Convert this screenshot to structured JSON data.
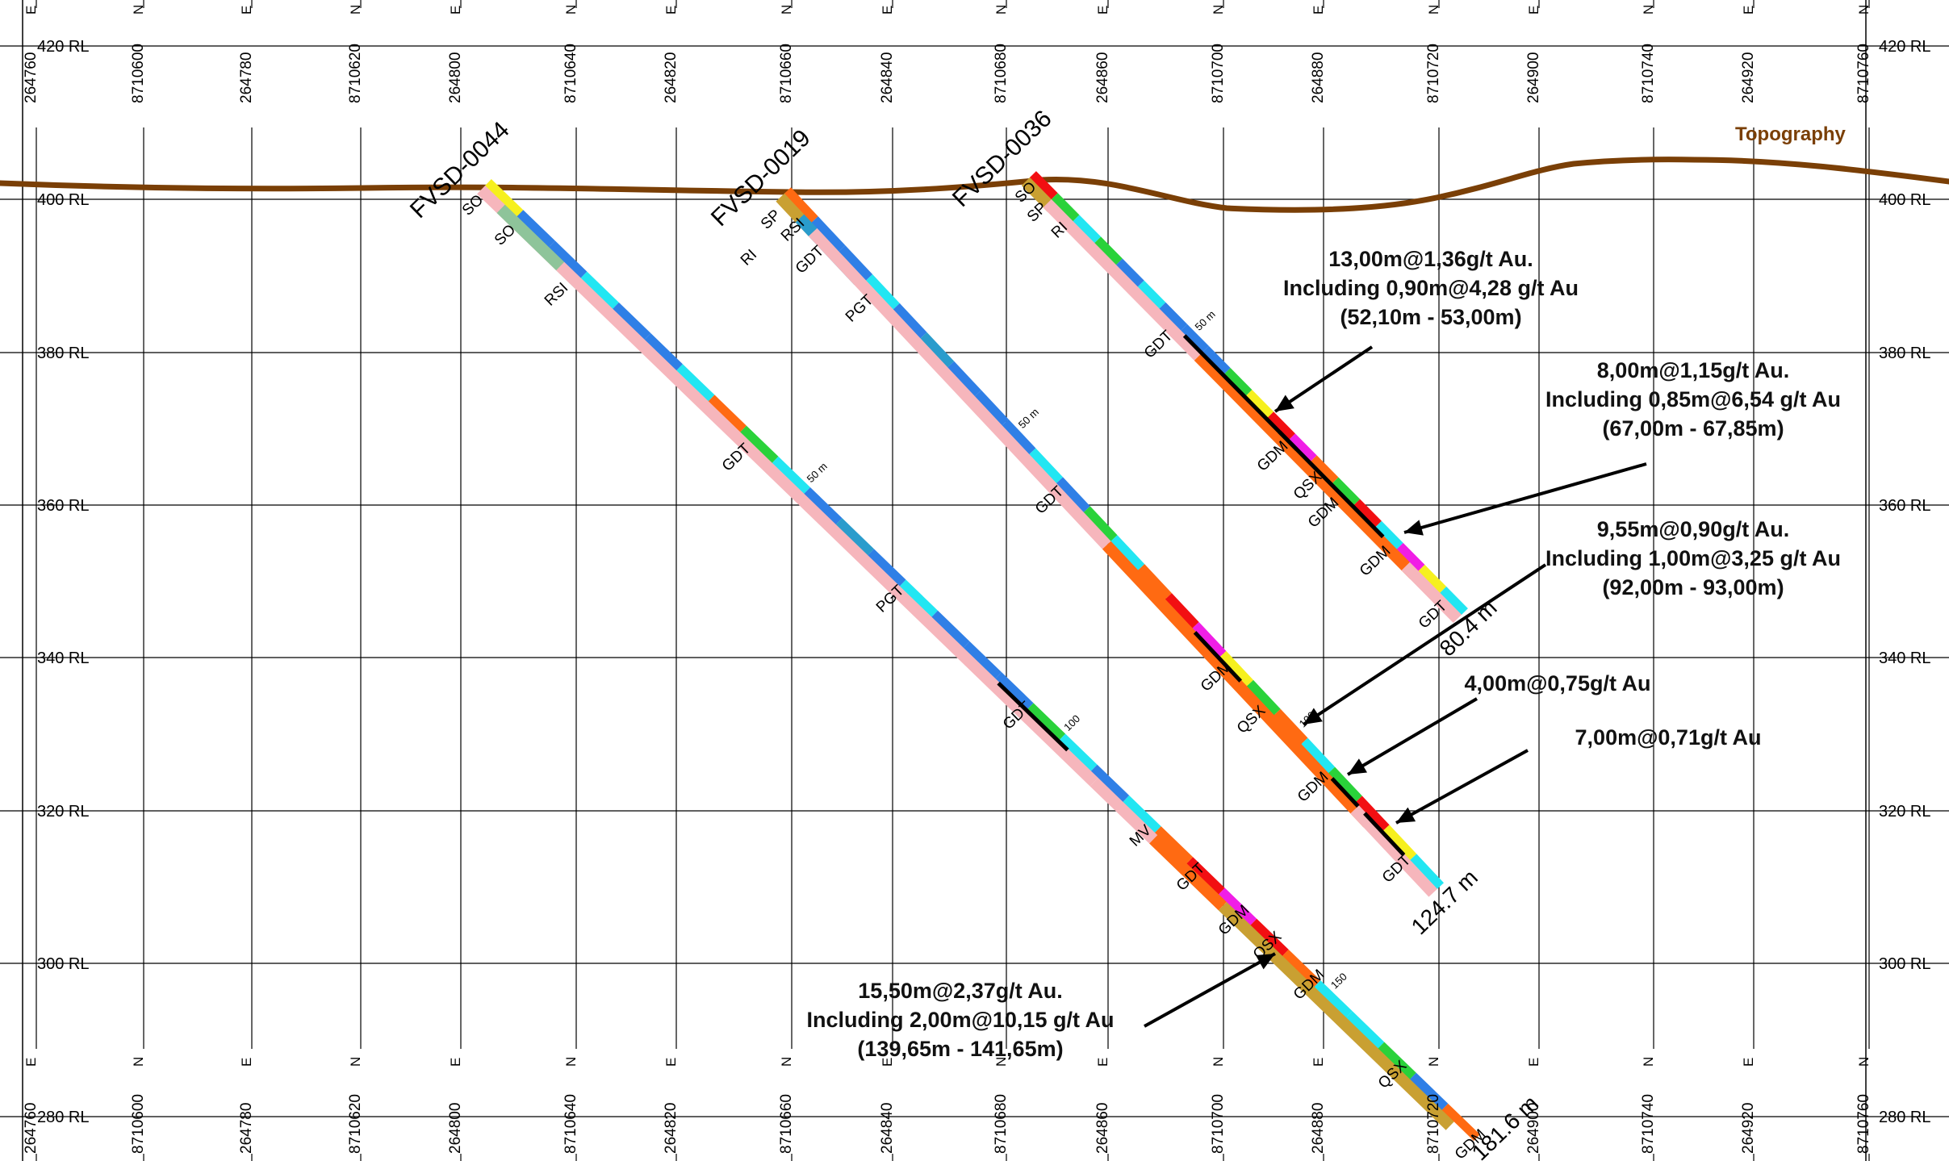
{
  "section": {
    "rl_labels": [
      "420 RL",
      "400 RL",
      "380 RL",
      "360 RL",
      "340 RL",
      "320 RL",
      "300 RL",
      "280 RL"
    ],
    "coord_labels": [
      {
        "num": "264760",
        "dir": "E"
      },
      {
        "num": "8710600",
        "dir": "N"
      },
      {
        "num": "264780",
        "dir": "E"
      },
      {
        "num": "8710620",
        "dir": "N"
      },
      {
        "num": "264800",
        "dir": "E"
      },
      {
        "num": "8710640",
        "dir": "N"
      },
      {
        "num": "264820",
        "dir": "E"
      },
      {
        "num": "8710660",
        "dir": "N"
      },
      {
        "num": "264840",
        "dir": "E"
      },
      {
        "num": "8710680",
        "dir": "N"
      },
      {
        "num": "264860",
        "dir": "E"
      },
      {
        "num": "8710700",
        "dir": "N"
      },
      {
        "num": "264880",
        "dir": "E"
      },
      {
        "num": "8710720",
        "dir": "N"
      },
      {
        "num": "264900",
        "dir": "E"
      },
      {
        "num": "8710740",
        "dir": "N"
      },
      {
        "num": "264920",
        "dir": "E"
      },
      {
        "num": "8710760",
        "dir": "N"
      }
    ],
    "topography_label": "Topography",
    "colors": {
      "topography": "#7a3f06",
      "grid": "#000000",
      "blue": "#2f7fe6",
      "cyan": "#22e6f2",
      "green": "#2ad23a",
      "lime": "#b2f03c",
      "yellow": "#f6f01e",
      "orange": "#ff6a12",
      "red": "#f20f12",
      "magenta": "#f01ee6",
      "pink": "#f6b6bc",
      "sage": "#8ec49a",
      "steel": "#2a9ccc",
      "tan": "#c9a032",
      "highlight": "#000000"
    },
    "holes": [
      {
        "name": "FVSD-0044",
        "end_depth": "181.6 m",
        "interval_marks": [
          "50 m",
          "100",
          "150"
        ],
        "lithology": [
          "SO",
          "SO",
          "RSI",
          "GDT",
          "PGT",
          "GDT",
          "MV",
          "GDT",
          "GDM",
          "QSX",
          "GDM",
          "QSX",
          "GDM"
        ]
      },
      {
        "name": "FVSD-0019",
        "end_depth": "124.7 m",
        "interval_marks": [
          "50 m",
          "100"
        ],
        "lithology": [
          "SP",
          "RSI",
          "RI",
          "GDT",
          "PGT",
          "GDT",
          "GDM",
          "QSX",
          "GDM",
          "GDT"
        ]
      },
      {
        "name": "FVSD-0036",
        "end_depth": "80.4 m",
        "interval_marks": [
          "50 m"
        ],
        "lithology": [
          "SO",
          "SP",
          "RI",
          "GDT",
          "GDM",
          "QSX",
          "GDM",
          "GDM",
          "GDT"
        ]
      }
    ],
    "annotations": [
      {
        "lines": [
          "13,00m@1,36g/t Au.",
          "Including 0,90m@4,28 g/t Au",
          "(52,10m - 53,00m)"
        ]
      },
      {
        "lines": [
          "8,00m@1,15g/t Au.",
          "Including 0,85m@6,54 g/t Au",
          "(67,00m - 67,85m)"
        ]
      },
      {
        "lines": [
          "9,55m@0,90g/t Au.",
          "Including 1,00m@3,25 g/t Au",
          "(92,00m - 93,00m)"
        ]
      },
      {
        "lines": [
          "4,00m@0,75g/t Au"
        ]
      },
      {
        "lines": [
          "7,00m@0,71g/t Au"
        ]
      },
      {
        "lines": [
          "15,50m@2,37g/t Au.",
          "Including 2,00m@10,15 g/t Au",
          "(139,65m - 141,65m)"
        ]
      }
    ]
  }
}
